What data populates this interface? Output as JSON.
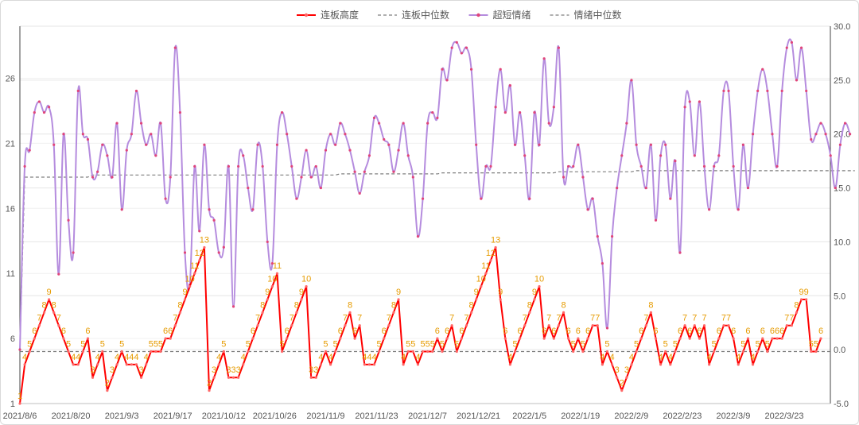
{
  "chart_data": {
    "type": "line",
    "legend": {
      "position": "top-center",
      "items": [
        {
          "label": "连板高度",
          "color": "#ff0000",
          "style": "solid"
        },
        {
          "label": "连板中位数",
          "color": "#7f7f7f",
          "style": "dashed"
        },
        {
          "label": "超短情绪",
          "color": "#b58cde",
          "style": "solid"
        },
        {
          "label": "情绪中位数",
          "color": "#7f7f7f",
          "style": "dashed"
        }
      ]
    },
    "x_tick_labels": [
      "2021/8/6",
      "2021/8/20",
      "2021/9/3",
      "2021/9/17",
      "2021/10/12",
      "2021/10/26",
      "2021/11/9",
      "2021/11/23",
      "2021/12/7",
      "2021/12/21",
      "2022/1/5",
      "2022/1/19",
      "2022/2/9",
      "2022/2/23",
      "2022/3/9",
      "2022/3/23"
    ],
    "left_axis": {
      "ticks": [
        1,
        6,
        11,
        16,
        21,
        26
      ],
      "ylim": [
        1,
        30
      ]
    },
    "right_axis": {
      "ticks": [
        "-5.0",
        "0.0",
        "5.0",
        "10.0",
        "15.0",
        "20.0",
        "25.0",
        "30.0"
      ],
      "ylim": [
        -5,
        30
      ]
    },
    "grid": true,
    "series": [
      {
        "name": "连板高度",
        "axis": "left",
        "values": [
          1,
          4,
          5,
          6,
          7,
          8,
          9,
          8,
          7,
          6,
          5,
          4,
          4,
          5,
          6,
          3,
          4,
          5,
          2,
          3,
          4,
          5,
          4,
          4,
          4,
          3,
          4,
          5,
          5,
          5,
          6,
          6,
          7,
          8,
          9,
          10,
          11,
          12,
          13,
          2,
          3,
          4,
          5,
          3,
          3,
          3,
          4,
          5,
          6,
          7,
          8,
          9,
          10,
          11,
          5,
          6,
          7,
          8,
          9,
          10,
          3,
          3,
          4,
          5,
          4,
          5,
          6,
          7,
          8,
          6,
          7,
          4,
          4,
          4,
          5,
          6,
          7,
          8,
          9,
          4,
          5,
          5,
          4,
          5,
          5,
          5,
          6,
          5,
          6,
          7,
          5,
          6,
          7,
          8,
          9,
          10,
          11,
          12,
          13,
          9,
          6,
          4,
          5,
          6,
          7,
          8,
          9,
          10,
          6,
          7,
          6,
          7,
          8,
          6,
          5,
          6,
          5,
          6,
          7,
          7,
          4,
          5,
          4,
          3,
          2,
          3,
          4,
          5,
          6,
          7,
          8,
          6,
          4,
          5,
          4,
          5,
          6,
          7,
          6,
          7,
          6,
          7,
          4,
          5,
          6,
          7,
          7,
          6,
          4,
          5,
          6,
          4,
          5,
          6,
          5,
          6,
          6,
          6,
          7,
          7,
          8,
          9,
          9,
          5,
          5,
          6
        ],
        "data_labels": true
      },
      {
        "name": "连板中位数",
        "axis": "left",
        "values": [
          5,
          5,
          5,
          5,
          5,
          5,
          5,
          5,
          5,
          5,
          5,
          5,
          5,
          5,
          5,
          5,
          5,
          5,
          5,
          5,
          5,
          5,
          5,
          5,
          5,
          5,
          5,
          5,
          5,
          5,
          5,
          5,
          5,
          5,
          5,
          5,
          5,
          5,
          5,
          5,
          5,
          5,
          5,
          5,
          5,
          5,
          5,
          5,
          5,
          5,
          5,
          5,
          5,
          5,
          5,
          5,
          5,
          5,
          5,
          5,
          5,
          5,
          5,
          5,
          5,
          5,
          5,
          5,
          5,
          5,
          5,
          5,
          5,
          5,
          5,
          5,
          5,
          5,
          5,
          5,
          5,
          5,
          5,
          5,
          5,
          5,
          5,
          5,
          5,
          5,
          5,
          5,
          5,
          5,
          5,
          5,
          5,
          5,
          5,
          5,
          5,
          5,
          5,
          5,
          5,
          5,
          5,
          5,
          5,
          5,
          5,
          5,
          5,
          5,
          5,
          5,
          5,
          5,
          5,
          5,
          5,
          5,
          5,
          5,
          5,
          5,
          5,
          5,
          5,
          5,
          5,
          5,
          5,
          5,
          5,
          5,
          5,
          5,
          5,
          5,
          5,
          5,
          5,
          5,
          5,
          5,
          5,
          5,
          5,
          5,
          5,
          5,
          5,
          5,
          5,
          5,
          5,
          5,
          5,
          5,
          5,
          5,
          5,
          5,
          5,
          5,
          5,
          5
        ]
      },
      {
        "name": "超短情绪",
        "axis": "right",
        "values": [
          0,
          17,
          18.5,
          22,
          23,
          22,
          22.5,
          19,
          7,
          20,
          12,
          9,
          24,
          20,
          19.5,
          16,
          16.5,
          19,
          18,
          16,
          21,
          13,
          18.5,
          20,
          24,
          21,
          19,
          20,
          18,
          21,
          14,
          16,
          28,
          22,
          9,
          6,
          17,
          11,
          19,
          13,
          12,
          9,
          9.5,
          17,
          4,
          17,
          18,
          15,
          13,
          19,
          17,
          10,
          8,
          19,
          22,
          20,
          17,
          14,
          16,
          18.5,
          16,
          17,
          15,
          18.5,
          20,
          19,
          21,
          20,
          18.5,
          16.5,
          14.5,
          16.5,
          18,
          21.5,
          21,
          19.5,
          19,
          16.5,
          18.5,
          21,
          18,
          16,
          10.5,
          14,
          21,
          22,
          21.5,
          26,
          25,
          28,
          28.5,
          27.5,
          28,
          26,
          19,
          14,
          17,
          17,
          22.5,
          26,
          22,
          24.5,
          19,
          22,
          18,
          14,
          22,
          19,
          27,
          21,
          22.5,
          28,
          16,
          17,
          17,
          19,
          16,
          13,
          14,
          10.5,
          8,
          2,
          10.5,
          15,
          18,
          21,
          25,
          19,
          17,
          15,
          19,
          12,
          18,
          19,
          14,
          17.5,
          9,
          22.5,
          23,
          18,
          23,
          17,
          13,
          17,
          18,
          24,
          24,
          17,
          13,
          19,
          15,
          20,
          24,
          26,
          24,
          20,
          17,
          24,
          28,
          28.5,
          25,
          28,
          24,
          19.5,
          20,
          21,
          20,
          18,
          15,
          19,
          21,
          20
        ]
      },
      {
        "name": "情绪中位数",
        "axis": "right",
        "values": [
          0,
          16,
          16,
          16,
          16,
          16,
          16,
          16,
          16,
          16,
          16,
          16,
          16,
          16,
          16,
          16.2,
          16.2,
          16.2,
          16.2,
          16.2,
          16.2,
          16.2,
          16.2,
          16.2,
          16.2,
          16.2,
          16.2,
          16.2,
          16.2,
          16.2,
          16.2,
          16.2,
          16.2,
          16.2,
          16.2,
          16.2,
          16.2,
          16.2,
          16.2,
          16.2,
          16.2,
          16.2,
          16.2,
          16.2,
          16.2,
          16.2,
          16.2,
          16.2,
          16.2,
          16.2,
          16.2,
          16.2,
          16.2,
          16.2,
          16.2,
          16.2,
          16.2,
          16.2,
          16.2,
          16.2,
          16.2,
          16.2,
          16.2,
          16.2,
          16.2,
          16.2,
          16.3,
          16.3,
          16.3,
          16.3,
          16.3,
          16.3,
          16.3,
          16.3,
          16.3,
          16.3,
          16.3,
          16.3,
          16.3,
          16.3,
          16.3,
          16.3,
          16.3,
          16.3,
          16.3,
          16.3,
          16.3,
          16.4,
          16.4,
          16.4,
          16.4,
          16.4,
          16.4,
          16.4,
          16.4,
          16.4,
          16.4,
          16.4,
          16.4,
          16.4,
          16.4,
          16.4,
          16.4,
          16.4,
          16.4,
          16.4,
          16.4,
          16.4,
          16.4,
          16.4,
          16.4,
          16.5,
          16.5,
          16.5,
          16.5,
          16.5,
          16.5,
          16.5,
          16.5,
          16.5,
          16.5,
          16.5,
          16.5,
          16.5,
          16.5,
          16.5,
          16.5,
          16.6,
          16.6,
          16.6,
          16.6,
          16.6,
          16.6,
          16.6,
          16.6,
          16.6,
          16.6,
          16.6,
          16.6,
          16.6,
          16.6,
          16.6,
          16.6,
          16.6,
          16.6,
          16.6,
          16.6,
          16.6,
          16.6,
          16.6,
          16.6,
          16.6,
          16.6,
          16.6,
          16.6,
          16.6,
          16.6,
          16.6,
          16.6,
          16.6,
          16.6,
          16.6,
          16.6,
          16.6,
          16.6,
          16.6,
          16.6,
          16.6,
          16.6,
          16.6,
          16.6,
          16.6,
          16.6
        ]
      }
    ]
  }
}
